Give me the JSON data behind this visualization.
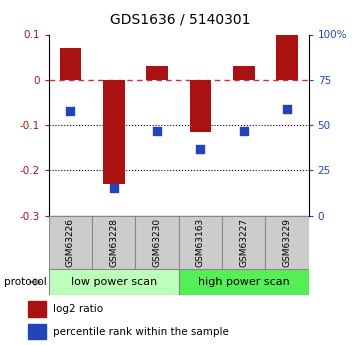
{
  "title": "GDS1636 / 5140301",
  "samples": [
    "GSM63226",
    "GSM63228",
    "GSM63230",
    "GSM63163",
    "GSM63227",
    "GSM63229"
  ],
  "log2_ratio": [
    0.07,
    -0.23,
    0.03,
    -0.115,
    0.03,
    0.1
  ],
  "percentile_rank": [
    58,
    15.5,
    46.5,
    37,
    46.5,
    59
  ],
  "ylim_left": [
    -0.3,
    0.1
  ],
  "ylim_right": [
    0,
    100
  ],
  "yticks_left": [
    -0.3,
    -0.2,
    -0.1,
    0.0,
    0.1
  ],
  "ytick_labels_left": [
    "-0.3",
    "-0.2",
    "-0.1",
    "0",
    "0.1"
  ],
  "yticks_right": [
    0,
    25,
    50,
    75,
    100
  ],
  "ytick_labels_right": [
    "0",
    "25",
    "50",
    "75",
    "100%"
  ],
  "bar_color": "#aa1111",
  "dot_color": "#2244bb",
  "dashed_line_color": "#cc3333",
  "dotted_line_y": [
    -0.1,
    -0.2
  ],
  "low_scan_color": "#bbffbb",
  "high_scan_color": "#55ee55",
  "sample_box_color": "#cccccc",
  "bar_width": 0.5,
  "dot_size": 30,
  "title_fontsize": 10,
  "axis_fontsize": 7.5,
  "label_fontsize": 7.5,
  "sample_fontsize": 6.5,
  "protocol_fontsize": 8
}
